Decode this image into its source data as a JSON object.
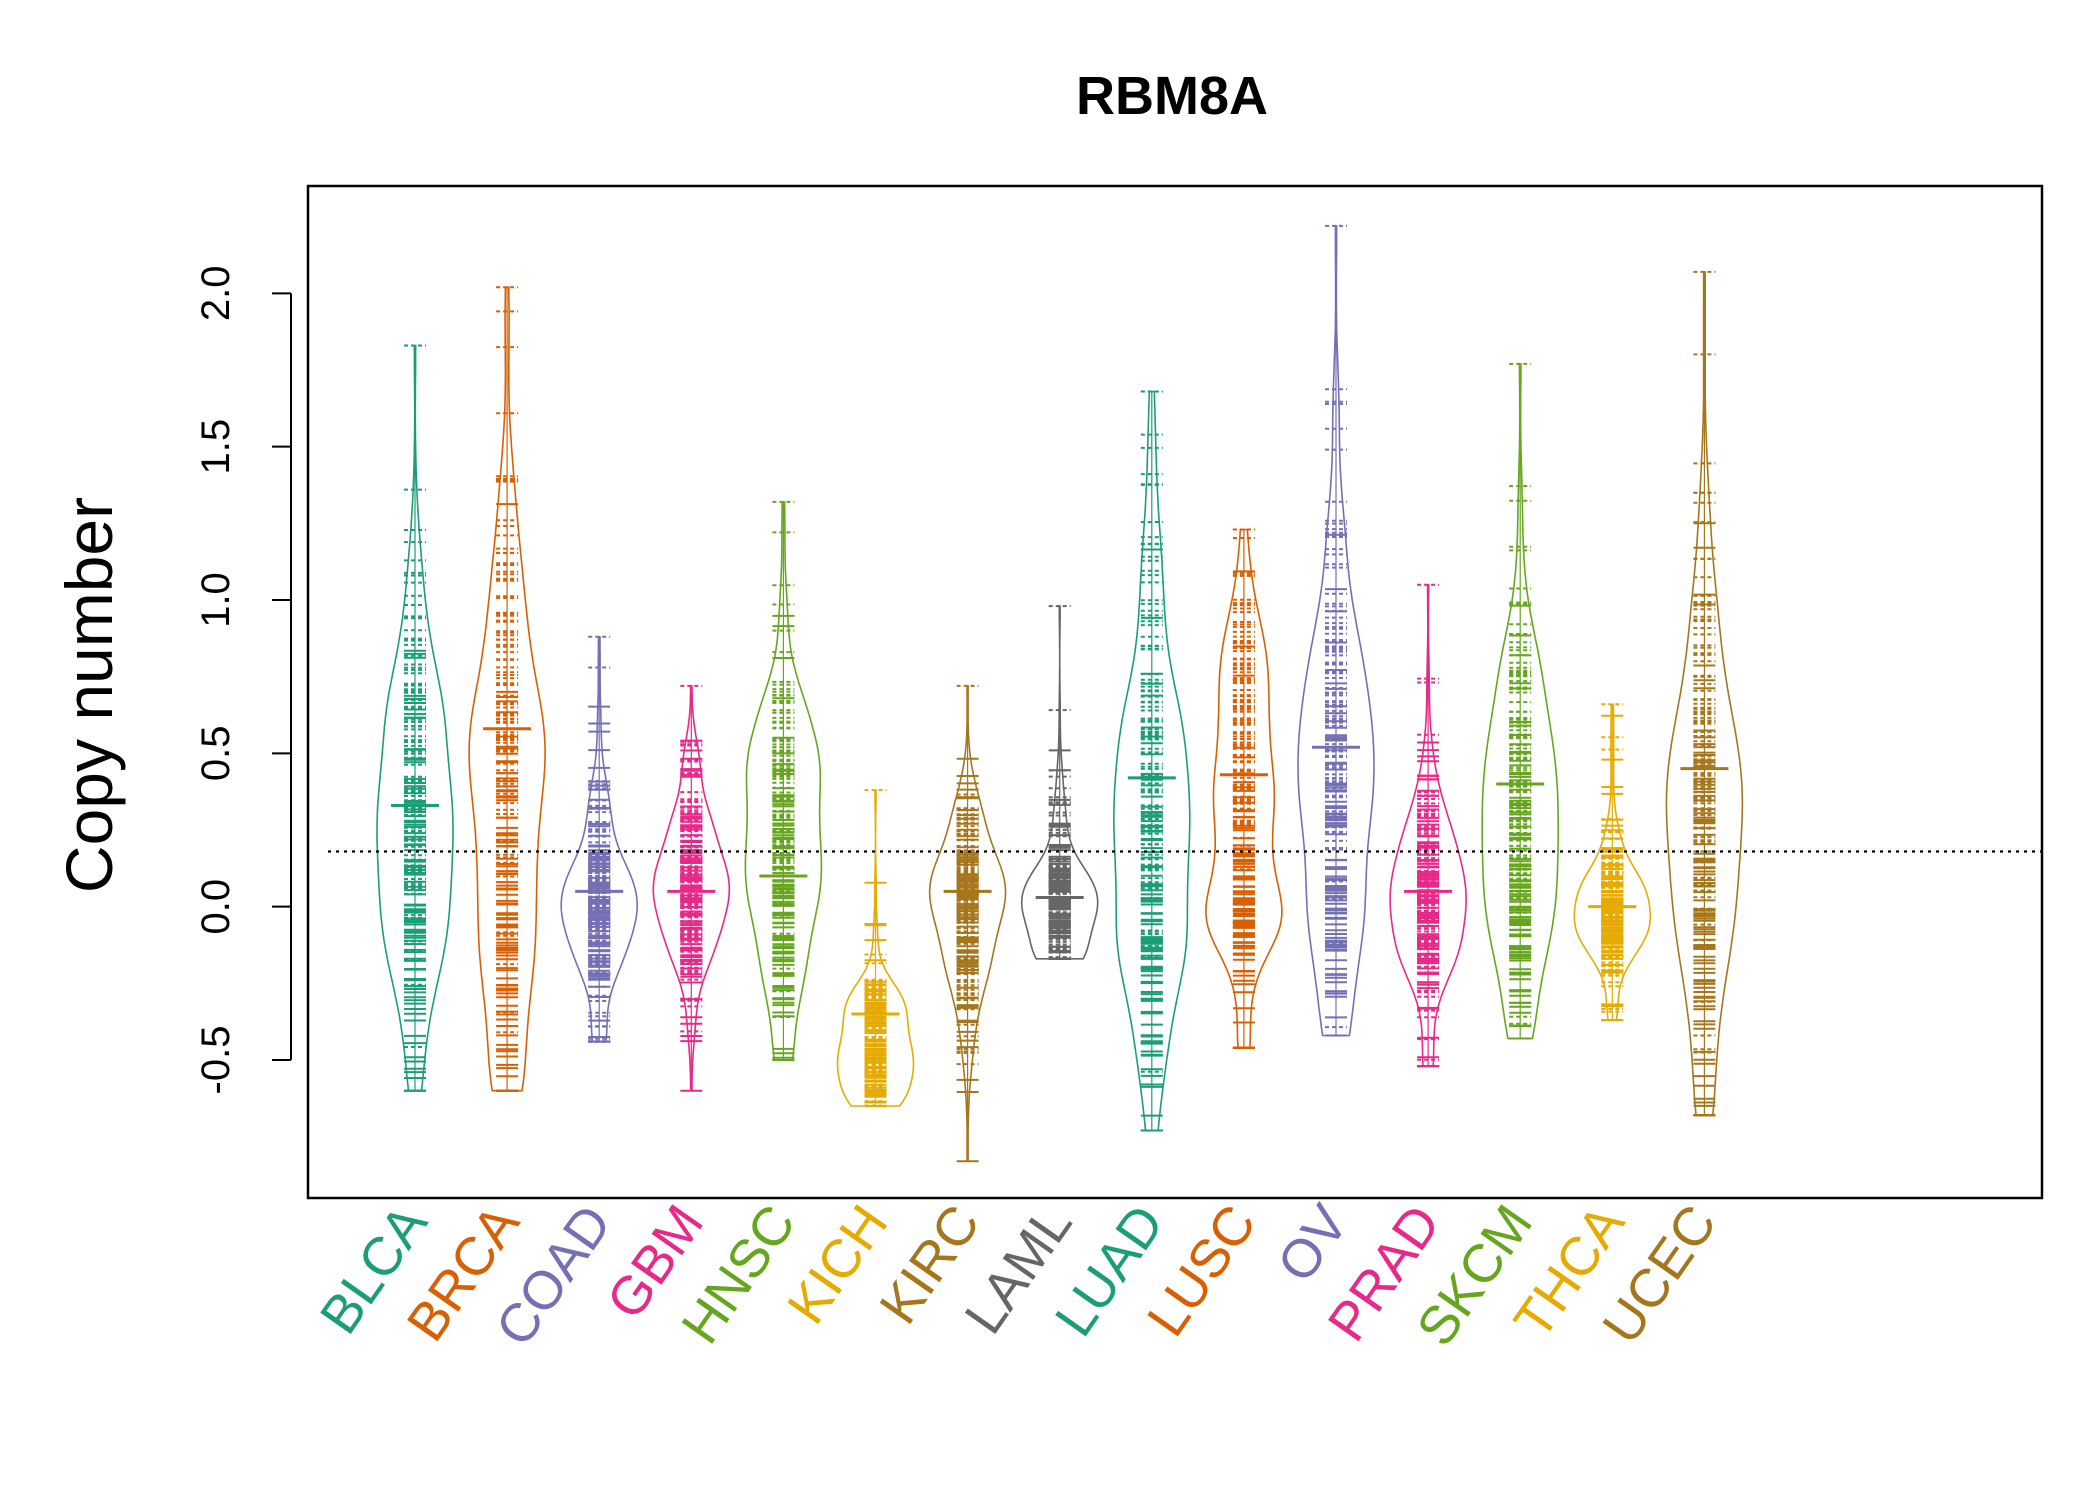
{
  "chart_data": {
    "type": "beanplot",
    "title": "RBM8A",
    "xlabel": "",
    "ylabel": "Copy number",
    "ylim": [
      -0.95,
      2.35
    ],
    "yticks": [
      -0.5,
      0.0,
      0.5,
      1.0,
      1.5,
      2.0
    ],
    "ytick_labels": [
      "-0.5",
      "0.0",
      "0.5",
      "1.0",
      "1.5",
      "2.0"
    ],
    "reference_line": 0.18,
    "grid": false,
    "legend": "none",
    "categories": [
      "BLCA",
      "BRCA",
      "COAD",
      "GBM",
      "HNSC",
      "KICH",
      "KIRC",
      "LAML",
      "LUAD",
      "LUSC",
      "OV",
      "PRAD",
      "SKCM",
      "THCA",
      "UCEC"
    ],
    "colors": [
      "#1b9e77",
      "#d95f02",
      "#7570b3",
      "#e7298a",
      "#66a61e",
      "#e6ab02",
      "#a6761d",
      "#666666",
      "#1b9e77",
      "#d95f02",
      "#7570b3",
      "#e7298a",
      "#66a61e",
      "#e6ab02",
      "#a6761d"
    ],
    "series": [
      {
        "name": "BLCA",
        "min": -0.6,
        "max": 1.83,
        "mean": 0.33,
        "modes": [
          0.05,
          0.45
        ]
      },
      {
        "name": "BRCA",
        "min": -0.6,
        "max": 2.02,
        "mean": 0.58,
        "modes": [
          0.05,
          0.65
        ]
      },
      {
        "name": "COAD",
        "min": -0.44,
        "max": 0.88,
        "mean": 0.05,
        "modes": [
          0.0
        ]
      },
      {
        "name": "GBM",
        "min": -0.6,
        "max": 0.72,
        "mean": 0.05,
        "modes": [
          0.05
        ]
      },
      {
        "name": "HNSC",
        "min": -0.5,
        "max": 1.32,
        "mean": 0.1,
        "modes": [
          0.02,
          0.4
        ]
      },
      {
        "name": "KICH",
        "min": -0.65,
        "max": 0.38,
        "mean": -0.35,
        "modes": [
          -0.45
        ]
      },
      {
        "name": "KIRC",
        "min": -0.83,
        "max": 0.72,
        "mean": 0.05,
        "modes": [
          0.02
        ]
      },
      {
        "name": "LAML",
        "min": -0.17,
        "max": 0.98,
        "mean": 0.03,
        "modes": [
          0.0
        ]
      },
      {
        "name": "LUAD",
        "min": -0.73,
        "max": 1.68,
        "mean": 0.42,
        "modes": [
          0.02,
          0.6
        ]
      },
      {
        "name": "LUSC",
        "min": -0.46,
        "max": 1.23,
        "mean": 0.43,
        "modes": [
          0.0,
          0.6
        ]
      },
      {
        "name": "OV",
        "min": -0.42,
        "max": 2.22,
        "mean": 0.52,
        "modes": [
          0.1,
          0.7
        ]
      },
      {
        "name": "PRAD",
        "min": -0.52,
        "max": 1.05,
        "mean": 0.05,
        "modes": [
          0.02
        ]
      },
      {
        "name": "SKCM",
        "min": -0.43,
        "max": 1.77,
        "mean": 0.4,
        "modes": [
          0.05,
          0.5
        ]
      },
      {
        "name": "THCA",
        "min": -0.37,
        "max": 0.66,
        "mean": 0.0,
        "modes": [
          0.0
        ]
      },
      {
        "name": "UCEC",
        "min": -0.68,
        "max": 2.07,
        "mean": 0.45,
        "modes": [
          0.02,
          0.55
        ]
      }
    ]
  }
}
